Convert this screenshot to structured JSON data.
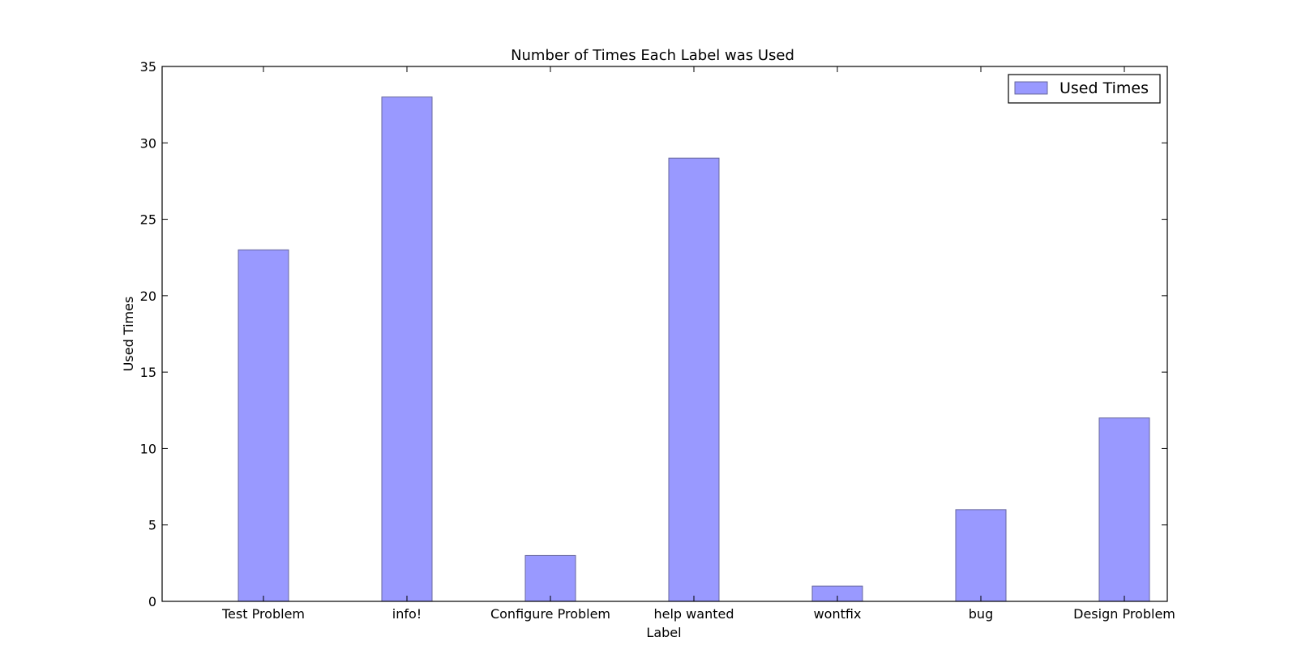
{
  "chart_data": {
    "type": "bar",
    "title": "Number of Times Each Label was Used",
    "xlabel": "Label",
    "ylabel": "Used Times",
    "categories": [
      "Test Problem",
      "info!",
      "Configure Problem",
      "help wanted",
      "wontfix",
      "bug",
      "Design Problem"
    ],
    "series": [
      {
        "name": "Used Times",
        "values": [
          23,
          33,
          3,
          29,
          1,
          6,
          12
        ]
      }
    ],
    "ylim": [
      0,
      35
    ],
    "yticks": [
      0,
      5,
      10,
      15,
      20,
      25,
      30,
      35
    ],
    "grid": false,
    "legend_position": "top-right",
    "bar_color": "#9999ff",
    "bar_edge_color": "#66669e"
  }
}
